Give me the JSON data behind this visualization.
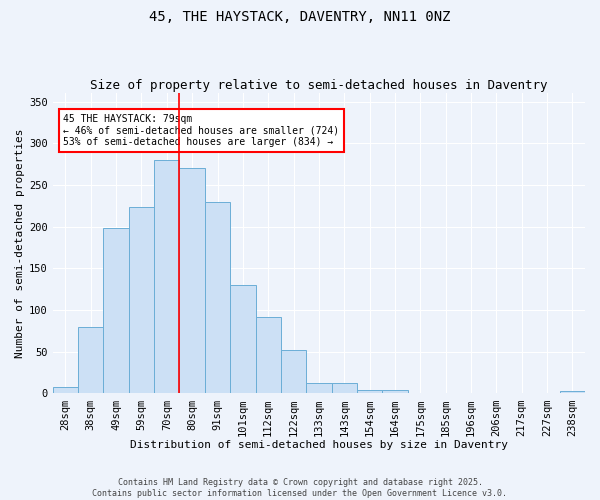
{
  "title1": "45, THE HAYSTACK, DAVENTRY, NN11 0NZ",
  "title2": "Size of property relative to semi-detached houses in Daventry",
  "xlabel": "Distribution of semi-detached houses by size in Daventry",
  "ylabel": "Number of semi-detached properties",
  "categories": [
    "28sqm",
    "38sqm",
    "49sqm",
    "59sqm",
    "70sqm",
    "80sqm",
    "91sqm",
    "101sqm",
    "112sqm",
    "122sqm",
    "133sqm",
    "143sqm",
    "154sqm",
    "164sqm",
    "175sqm",
    "185sqm",
    "196sqm",
    "206sqm",
    "217sqm",
    "227sqm",
    "238sqm"
  ],
  "values": [
    8,
    80,
    198,
    224,
    280,
    270,
    230,
    130,
    92,
    52,
    12,
    12,
    4,
    4,
    0,
    1,
    0,
    1,
    0,
    0,
    3
  ],
  "bar_color": "#cce0f5",
  "bar_edge_color": "#6baed6",
  "background_color": "#eef3fb",
  "grid_color": "#ffffff",
  "annotation_text": "45 THE HAYSTACK: 79sqm\n← 46% of semi-detached houses are smaller (724)\n53% of semi-detached houses are larger (834) →",
  "annotation_box_color": "white",
  "annotation_box_edge": "red",
  "vline_x": 4.5,
  "vline_color": "red",
  "ylim": [
    0,
    360
  ],
  "yticks": [
    0,
    50,
    100,
    150,
    200,
    250,
    300,
    350
  ],
  "footer": "Contains HM Land Registry data © Crown copyright and database right 2025.\nContains public sector information licensed under the Open Government Licence v3.0.",
  "title_fontsize": 10,
  "subtitle_fontsize": 9,
  "xlabel_fontsize": 8,
  "ylabel_fontsize": 8,
  "tick_fontsize": 7.5,
  "annotation_fontsize": 7,
  "footer_fontsize": 6
}
